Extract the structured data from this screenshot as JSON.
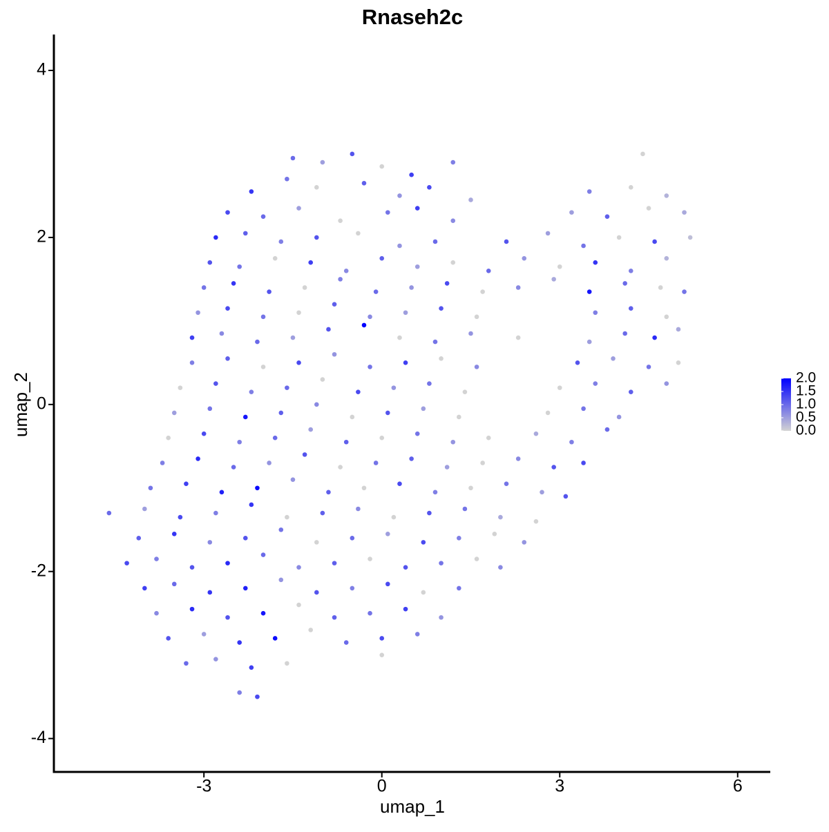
{
  "chart_data": {
    "type": "scatter",
    "title": "Rnaseh2c",
    "x_label": "umap_1",
    "y_label": "umap_2",
    "xlim": [
      -5.53,
      6.55
    ],
    "ylim": [
      -4.4,
      4.43
    ],
    "xticks": [
      -3,
      0,
      3,
      6
    ],
    "yticks": [
      -4,
      -2,
      0,
      2,
      4
    ],
    "colors": [
      "#d3d3d3",
      "#0000ff"
    ],
    "color_lim": [
      0,
      2
    ],
    "color_ticks": [
      {
        "value": 0,
        "label": "0.0"
      },
      {
        "value": 0.5,
        "label": "0.5"
      },
      {
        "value": 1,
        "label": "1.0"
      },
      {
        "value": 1.5,
        "label": "1.5"
      },
      {
        "value": 2,
        "label": "2.0"
      }
    ],
    "x": [
      -1.5,
      -1.0,
      -0.5,
      0.0,
      0.5,
      1.2,
      4.4,
      -2.2,
      -1.6,
      -1.1,
      -0.3,
      0.3,
      0.8,
      1.5,
      3.5,
      4.2,
      4.8,
      -2.6,
      -2.0,
      -1.4,
      -0.7,
      0.1,
      0.6,
      1.2,
      3.2,
      3.8,
      4.5,
      5.1,
      -2.8,
      -2.3,
      -1.7,
      -1.1,
      -0.4,
      0.3,
      0.9,
      2.1,
      2.8,
      3.4,
      4.0,
      4.6,
      5.2,
      -2.9,
      -2.4,
      -1.8,
      -1.2,
      -0.6,
      0.0,
      0.6,
      1.2,
      1.8,
      2.4,
      3.0,
      3.6,
      4.2,
      4.8,
      -3.0,
      -2.5,
      -1.9,
      -1.3,
      -0.7,
      -0.1,
      0.5,
      1.1,
      1.7,
      2.3,
      2.9,
      3.5,
      4.1,
      4.7,
      5.1,
      -3.1,
      -2.6,
      -2.0,
      -1.4,
      -0.8,
      -0.2,
      0.4,
      1.0,
      1.6,
      3.6,
      4.2,
      4.8,
      -3.2,
      -2.7,
      -2.1,
      -1.5,
      -0.9,
      -0.3,
      0.3,
      0.9,
      1.5,
      2.3,
      3.5,
      4.1,
      4.6,
      5.0,
      -3.2,
      -2.6,
      -2.0,
      -1.4,
      -0.8,
      -0.2,
      0.4,
      1.0,
      1.6,
      3.3,
      3.9,
      4.5,
      5.0,
      -3.4,
      -2.8,
      -2.2,
      -1.6,
      -1.0,
      -0.4,
      0.2,
      0.8,
      1.4,
      3.0,
      3.6,
      4.2,
      4.8,
      -3.5,
      -2.9,
      -2.3,
      -1.7,
      -1.1,
      -0.5,
      0.1,
      0.7,
      1.3,
      2.8,
      3.4,
      4.0,
      -3.6,
      -3.0,
      -2.4,
      -1.8,
      -1.2,
      -0.6,
      0.0,
      0.6,
      1.2,
      1.8,
      2.6,
      3.2,
      3.8,
      -3.7,
      -3.1,
      -2.5,
      -1.9,
      -1.3,
      -0.7,
      -0.1,
      0.5,
      1.1,
      1.7,
      2.3,
      2.9,
      3.4,
      -3.9,
      -3.3,
      -2.7,
      -2.1,
      -1.5,
      -0.9,
      -0.3,
      0.3,
      0.9,
      1.5,
      2.1,
      2.7,
      3.1,
      -4.6,
      -4.0,
      -3.4,
      -2.8,
      -2.2,
      -1.6,
      -1.0,
      -0.4,
      0.2,
      0.8,
      1.4,
      2.0,
      2.6,
      -4.1,
      -3.5,
      -2.9,
      -2.3,
      -1.7,
      -1.1,
      -0.5,
      0.1,
      0.7,
      1.3,
      1.9,
      2.4,
      -4.3,
      -3.8,
      -3.2,
      -2.6,
      -2.0,
      -1.4,
      -0.8,
      -0.2,
      0.4,
      1.0,
      1.6,
      2.0,
      -4.0,
      -3.5,
      -2.9,
      -2.3,
      -1.7,
      -1.1,
      -0.5,
      0.1,
      0.7,
      1.3,
      -3.8,
      -3.2,
      -2.6,
      -2.0,
      -1.4,
      -0.8,
      -0.2,
      0.4,
      1.0,
      -3.6,
      -3.0,
      -2.4,
      -1.8,
      -1.2,
      -0.6,
      0.0,
      0.6,
      -3.3,
      -2.8,
      -2.2,
      -1.6,
      0.0,
      -2.4,
      -2.1
    ],
    "y": [
      2.95,
      2.9,
      3.0,
      2.85,
      2.75,
      2.9,
      3.0,
      2.55,
      2.7,
      2.6,
      2.65,
      2.5,
      2.6,
      2.45,
      2.55,
      2.6,
      2.5,
      2.3,
      2.25,
      2.35,
      2.2,
      2.3,
      2.35,
      2.2,
      2.3,
      2.25,
      2.35,
      2.3,
      2.0,
      2.05,
      1.95,
      2.0,
      2.05,
      1.9,
      1.95,
      1.95,
      2.05,
      1.9,
      2.0,
      1.95,
      2.0,
      1.7,
      1.65,
      1.75,
      1.7,
      1.6,
      1.75,
      1.65,
      1.7,
      1.6,
      1.75,
      1.65,
      1.7,
      1.6,
      1.75,
      1.4,
      1.45,
      1.35,
      1.4,
      1.5,
      1.35,
      1.4,
      1.45,
      1.35,
      1.4,
      1.5,
      1.35,
      1.45,
      1.4,
      1.35,
      1.1,
      1.15,
      1.05,
      1.1,
      1.2,
      1.05,
      1.1,
      1.15,
      1.05,
      1.1,
      1.15,
      1.05,
      0.8,
      0.85,
      0.75,
      0.8,
      0.9,
      0.95,
      0.8,
      0.75,
      0.85,
      0.8,
      0.75,
      0.85,
      0.8,
      0.9,
      0.5,
      0.55,
      0.45,
      0.5,
      0.6,
      0.45,
      0.5,
      0.55,
      0.45,
      0.5,
      0.55,
      0.45,
      0.5,
      0.2,
      0.25,
      0.15,
      0.2,
      0.3,
      0.15,
      0.2,
      0.25,
      0.15,
      0.2,
      0.25,
      0.15,
      0.25,
      -0.1,
      -0.05,
      -0.15,
      -0.1,
      0.0,
      -0.15,
      -0.1,
      -0.05,
      -0.15,
      -0.1,
      -0.05,
      -0.15,
      -0.4,
      -0.35,
      -0.45,
      -0.4,
      -0.3,
      -0.45,
      -0.4,
      -0.35,
      -0.45,
      -0.4,
      -0.35,
      -0.45,
      -0.3,
      -0.7,
      -0.65,
      -0.75,
      -0.7,
      -0.6,
      -0.75,
      -0.7,
      -0.65,
      -0.75,
      -0.7,
      -0.65,
      -0.75,
      -0.7,
      -1.0,
      -0.95,
      -1.05,
      -1.0,
      -0.9,
      -1.05,
      -1.0,
      -0.95,
      -1.05,
      -1.0,
      -0.95,
      -1.05,
      -1.1,
      -1.3,
      -1.25,
      -1.35,
      -1.3,
      -1.2,
      -1.35,
      -1.3,
      -1.25,
      -1.35,
      -1.3,
      -1.25,
      -1.35,
      -1.4,
      -1.6,
      -1.55,
      -1.65,
      -1.6,
      -1.5,
      -1.65,
      -1.6,
      -1.55,
      -1.65,
      -1.6,
      -1.55,
      -1.65,
      -1.9,
      -1.85,
      -1.95,
      -1.9,
      -1.8,
      -1.95,
      -1.9,
      -1.85,
      -1.95,
      -1.9,
      -1.85,
      -1.95,
      -2.2,
      -2.15,
      -2.25,
      -2.2,
      -2.1,
      -2.25,
      -2.2,
      -2.15,
      -2.25,
      -2.2,
      -2.5,
      -2.45,
      -2.55,
      -2.5,
      -2.4,
      -2.55,
      -2.5,
      -2.45,
      -2.55,
      -2.8,
      -2.75,
      -2.85,
      -2.8,
      -2.7,
      -2.85,
      -2.8,
      -2.75,
      -3.1,
      -3.05,
      -3.15,
      -3.1,
      -3.0,
      -3.45,
      -3.5
    ],
    "values": [
      1.0,
      0.5,
      1.2,
      0,
      1.4,
      0.8,
      0,
      1.5,
      0.9,
      0,
      1.1,
      0.6,
      1.3,
      0.4,
      0.8,
      0,
      0.3,
      1.3,
      1.0,
      0.5,
      0,
      0.9,
      1.4,
      0.7,
      0.5,
      1.1,
      0,
      0.4,
      1.6,
      1.1,
      0.8,
      1.2,
      0,
      0.6,
      1.0,
      1.2,
      0.5,
      0.9,
      0,
      1.3,
      0.2,
      1.2,
      0.9,
      0,
      1.4,
      0.7,
      1.1,
      0.5,
      0,
      1.0,
      0.6,
      0,
      1.5,
      0.8,
      0.3,
      0.9,
      1.5,
      1.2,
      0,
      0.8,
      1.0,
      0.6,
      1.3,
      0,
      0.7,
      0.4,
      1.8,
      1.0,
      0,
      0.9,
      0.6,
      1.3,
      0.9,
      0,
      1.1,
      0.7,
      0.5,
      1.2,
      0,
      0.8,
      1.1,
      0,
      1.4,
      0.7,
      1.0,
      0.5,
      1.2,
      2.0,
      0,
      0.9,
      0.6,
      0,
      0.5,
      1.0,
      1.6,
      0.4,
      0.8,
      1.1,
      0,
      1.3,
      0.6,
      0.9,
      1.4,
      0,
      0.7,
      1.2,
      0.5,
      0.9,
      0,
      0,
      1.2,
      0.8,
      1.0,
      0,
      1.3,
      0.6,
      0.9,
      0,
      0,
      0.8,
      1.1,
      0.6,
      0.5,
      0.9,
      1.8,
      1.1,
      0.7,
      0,
      1.2,
      0.5,
      0,
      0,
      0.9,
      0.6,
      0,
      1.3,
      0.8,
      1.0,
      0.5,
      1.1,
      0,
      0.9,
      0.6,
      0,
      0.4,
      0.8,
      1.0,
      0.8,
      1.6,
      1.0,
      0.6,
      1.2,
      0,
      0.9,
      1.1,
      0.5,
      0,
      0.7,
      1.2,
      1.3,
      0.9,
      1.4,
      1.7,
      1.9,
      0.6,
      1.1,
      0,
      1.3,
      0.8,
      0,
      0.9,
      0.5,
      1.2,
      1.0,
      0.5,
      1.3,
      0.8,
      1.5,
      0,
      1.1,
      0.7,
      0,
      1.2,
      0.9,
      0.4,
      0,
      1.1,
      1.5,
      0.7,
      1.2,
      0.9,
      0,
      1.0,
      0.5,
      1.3,
      0.8,
      0,
      0.6,
      1.3,
      0.8,
      1.2,
      1.6,
      1.0,
      0.7,
      1.1,
      0,
      1.2,
      0.9,
      0,
      0.7,
      1.4,
      1.0,
      1.5,
      1.7,
      0.6,
      1.2,
      0.8,
      1.3,
      0,
      0.9,
      0.7,
      1.6,
      1.2,
      1.8,
      0,
      1.1,
      0.9,
      1.4,
      0.6,
      1.2,
      0.5,
      1.5,
      1.9,
      0,
      1.0,
      1.3,
      0.8,
      1.0,
      0.6,
      1.4,
      0,
      0,
      0.8,
      1.3
    ]
  }
}
